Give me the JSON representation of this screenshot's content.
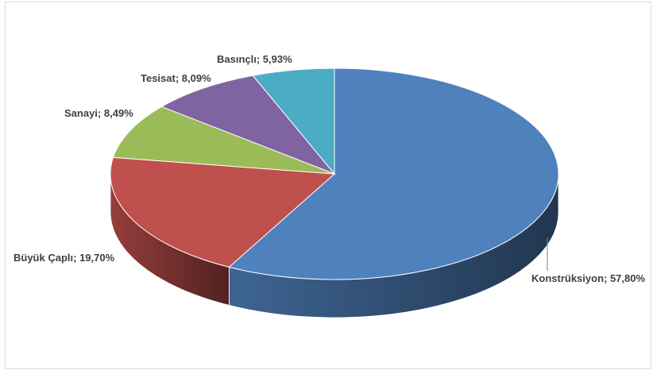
{
  "chart_data": {
    "type": "pie",
    "variant": "3d",
    "title": "",
    "series": [
      {
        "values": [
          57.8,
          19.7,
          8.49,
          8.09,
          5.93
        ],
        "labels": [
          "Konstrüksiyon; 57,80%",
          "Büyük Çaplı; 19,70%",
          "Sanayi; 8,49%",
          "Tesisat; 8,09%",
          "Basınçlı; 5,93%"
        ],
        "colors": [
          "#4F81BD",
          "#C0504D",
          "#9BBB59",
          "#8064A2",
          "#4BACC6"
        ]
      }
    ],
    "legend": "none"
  }
}
